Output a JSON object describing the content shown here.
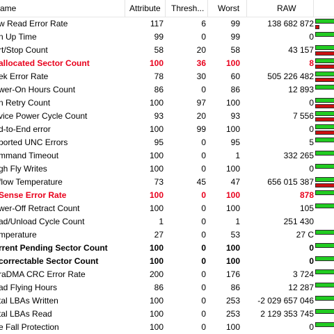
{
  "headers": {
    "name": "ame",
    "attribute": "Attribute",
    "threshold": "Thresh...",
    "worst": "Worst",
    "raw": "RAW"
  },
  "rows": [
    {
      "name": "w Read Error Rate",
      "attribute": "117",
      "threshold": "6",
      "worst": "99",
      "raw": "138 682 872",
      "style": "normal",
      "health_bar": "green",
      "raw_bar": "mini"
    },
    {
      "name": "n Up Time",
      "attribute": "99",
      "threshold": "0",
      "worst": "99",
      "raw": "0",
      "style": "normal",
      "health_bar": "green",
      "raw_bar": "none"
    },
    {
      "name": "rt/Stop Count",
      "attribute": "58",
      "threshold": "20",
      "worst": "58",
      "raw": "43 157",
      "style": "normal",
      "health_bar": "green",
      "raw_bar": "red"
    },
    {
      "name": "allocated Sector Count",
      "attribute": "100",
      "threshold": "36",
      "worst": "100",
      "raw": "8",
      "style": "red",
      "health_bar": "green",
      "raw_bar": "red"
    },
    {
      "name": "ek Error Rate",
      "attribute": "78",
      "threshold": "30",
      "worst": "60",
      "raw": "505 226 482",
      "style": "normal",
      "health_bar": "green",
      "raw_bar": "red"
    },
    {
      "name": "wer-On Hours Count",
      "attribute": "86",
      "threshold": "0",
      "worst": "86",
      "raw": "12 893",
      "style": "normal",
      "health_bar": "green",
      "raw_bar": "none"
    },
    {
      "name": "n Retry Count",
      "attribute": "100",
      "threshold": "97",
      "worst": "100",
      "raw": "0",
      "style": "normal",
      "health_bar": "green",
      "raw_bar": "red"
    },
    {
      "name": "vice Power Cycle Count",
      "attribute": "93",
      "threshold": "20",
      "worst": "93",
      "raw": "7 556",
      "style": "normal",
      "health_bar": "green",
      "raw_bar": "red"
    },
    {
      "name": "d-to-End error",
      "attribute": "100",
      "threshold": "99",
      "worst": "100",
      "raw": "0",
      "style": "normal",
      "health_bar": "green",
      "raw_bar": "red"
    },
    {
      "name": "ported UNC Errors",
      "attribute": "95",
      "threshold": "0",
      "worst": "95",
      "raw": "5",
      "style": "normal",
      "health_bar": "green",
      "raw_bar": "none"
    },
    {
      "name": "mmand Timeout",
      "attribute": "100",
      "threshold": "0",
      "worst": "1",
      "raw": "332 265",
      "style": "normal",
      "health_bar": "green",
      "raw_bar": "none"
    },
    {
      "name": "gh Fly Writes",
      "attribute": "100",
      "threshold": "0",
      "worst": "100",
      "raw": "0",
      "style": "normal",
      "health_bar": "green",
      "raw_bar": "none"
    },
    {
      "name": "flow Temperature",
      "attribute": "73",
      "threshold": "45",
      "worst": "47",
      "raw": "656 015 387",
      "style": "normal",
      "health_bar": "green",
      "raw_bar": "red"
    },
    {
      "name": "Sense Error Rate",
      "attribute": "100",
      "threshold": "0",
      "worst": "100",
      "raw": "878",
      "style": "red",
      "health_bar": "green",
      "raw_bar": "none"
    },
    {
      "name": "wer-Off Retract Count",
      "attribute": "100",
      "threshold": "0",
      "worst": "100",
      "raw": "105",
      "style": "normal",
      "health_bar": "green",
      "raw_bar": "none"
    },
    {
      "name": "ad/Unload Cycle Count",
      "attribute": "1",
      "threshold": "0",
      "worst": "1",
      "raw": "251 430",
      "style": "normal",
      "health_bar": "none",
      "raw_bar": "none"
    },
    {
      "name": "mperature",
      "attribute": "27",
      "threshold": "0",
      "worst": "53",
      "raw": "27 C",
      "style": "normal",
      "health_bar": "green",
      "raw_bar": "none"
    },
    {
      "name": "rrent Pending Sector Count",
      "attribute": "100",
      "threshold": "0",
      "worst": "100",
      "raw": "0",
      "style": "bold",
      "health_bar": "green",
      "raw_bar": "none"
    },
    {
      "name": "correctable Sector Count",
      "attribute": "100",
      "threshold": "0",
      "worst": "100",
      "raw": "0",
      "style": "bold",
      "health_bar": "green",
      "raw_bar": "none"
    },
    {
      "name": "raDMA CRC Error Rate",
      "attribute": "200",
      "threshold": "0",
      "worst": "176",
      "raw": "3 724",
      "style": "normal",
      "health_bar": "green",
      "raw_bar": "none"
    },
    {
      "name": "ad Flying Hours",
      "attribute": "86",
      "threshold": "0",
      "worst": "86",
      "raw": "12 287",
      "style": "normal",
      "health_bar": "green",
      "raw_bar": "none"
    },
    {
      "name": "tal LBAs Written",
      "attribute": "100",
      "threshold": "0",
      "worst": "253",
      "raw": "-2 029 657 046",
      "style": "normal",
      "health_bar": "green",
      "raw_bar": "none"
    },
    {
      "name": "tal LBAs Read",
      "attribute": "100",
      "threshold": "0",
      "worst": "253",
      "raw": "2 129 353 745",
      "style": "normal",
      "health_bar": "green",
      "raw_bar": "none"
    },
    {
      "name": "e Fall Protection",
      "attribute": "100",
      "threshold": "0",
      "worst": "100",
      "raw": "0",
      "style": "normal",
      "health_bar": "green",
      "raw_bar": "none"
    }
  ],
  "colors": {
    "good": "#22cc22",
    "bad": "#cc1111",
    "alert_text": "#e8001c"
  }
}
